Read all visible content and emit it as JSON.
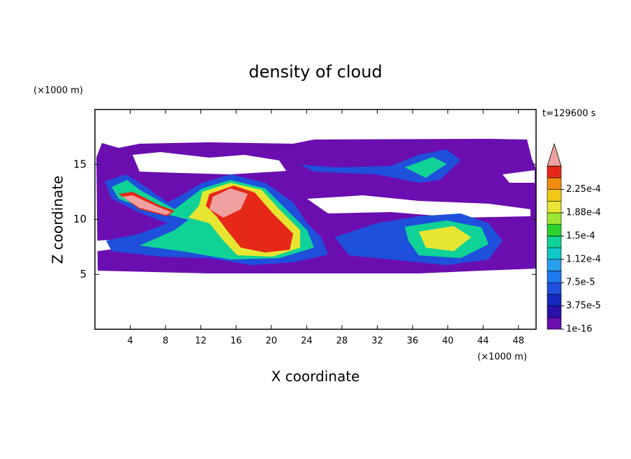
{
  "chart_data": {
    "type": "contour",
    "title": "density of cloud",
    "subtitle": "t=129600 s",
    "x_label": "X coordinate",
    "y_label": "Z coordinate",
    "x_unit": "(×1000 m)",
    "y_unit": "(×1000 m)",
    "xlim": [
      0,
      50
    ],
    "ylim": [
      0,
      20
    ],
    "xticks": [
      4,
      8,
      12,
      16,
      20,
      24,
      28,
      32,
      36,
      40,
      44,
      48
    ],
    "yticks": [
      5,
      10,
      15
    ],
    "colorbar": {
      "levels": [
        1e-16,
        1.875e-05,
        3.75e-05,
        5.625e-05,
        7.5e-05,
        9.375e-05,
        0.0001125,
        0.00013125,
        0.00015,
        0.00016875,
        0.0001875,
        0.00020625,
        0.000225,
        0.00024375,
        0.0002625
      ],
      "colors": [
        "#6a0eb0",
        "#2a10a8",
        "#1428c0",
        "#1e50dc",
        "#1e78f0",
        "#28a0f0",
        "#10c8c8",
        "#10d296",
        "#2ad22a",
        "#9be632",
        "#e6e632",
        "#f0c814",
        "#f08c10",
        "#e62818"
      ],
      "extend_color": "#f0a0a0",
      "ticks": [
        {
          "value": 1e-16,
          "label": "1e-16"
        },
        {
          "value": 3.75e-05,
          "label": "3.75e-5"
        },
        {
          "value": 7.5e-05,
          "label": "7.5e-5"
        },
        {
          "value": 0.0001125,
          "label": "1.12e-4"
        },
        {
          "value": 0.00015,
          "label": "1.5e-4"
        },
        {
          "value": 0.0001875,
          "label": "1.88e-4"
        },
        {
          "value": 0.000225,
          "label": "2.25e-4"
        }
      ]
    }
  }
}
